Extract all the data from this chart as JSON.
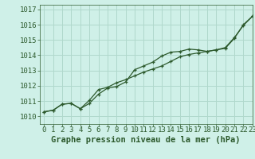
{
  "title": "Graphe pression niveau de la mer (hPa)",
  "bg_color": "#cff0e8",
  "grid_color": "#b0d8cc",
  "line_color": "#2d5a2d",
  "xlim": [
    -0.5,
    23
  ],
  "ylim": [
    1009.5,
    1017.3
  ],
  "yticks": [
    1010,
    1011,
    1012,
    1013,
    1014,
    1015,
    1016,
    1017
  ],
  "xticks": [
    0,
    1,
    2,
    3,
    4,
    5,
    6,
    7,
    8,
    9,
    10,
    11,
    12,
    13,
    14,
    15,
    16,
    17,
    18,
    19,
    20,
    21,
    22,
    23
  ],
  "series1": [
    1010.3,
    1010.4,
    1010.8,
    1010.85,
    1010.5,
    1010.85,
    1011.45,
    1011.85,
    1011.95,
    1012.25,
    1013.05,
    1013.3,
    1013.55,
    1013.95,
    1014.2,
    1014.25,
    1014.4,
    1014.35,
    1014.25,
    1014.35,
    1014.45,
    1015.1,
    1016.0,
    1016.55
  ],
  "series2": [
    1010.3,
    1010.4,
    1010.8,
    1010.85,
    1010.5,
    1011.05,
    1011.75,
    1011.9,
    1012.2,
    1012.4,
    1012.65,
    1012.9,
    1013.1,
    1013.3,
    1013.6,
    1013.9,
    1014.05,
    1014.15,
    1014.25,
    1014.35,
    1014.5,
    1015.15,
    1015.95,
    1016.55
  ],
  "title_fontsize": 7.5,
  "tick_fontsize": 6.5,
  "lw": 0.9
}
